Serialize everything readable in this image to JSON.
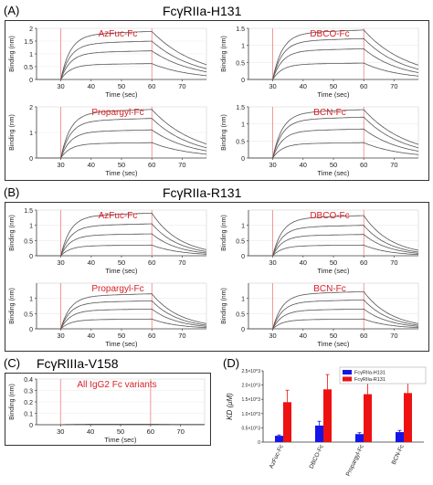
{
  "section_labels": [
    "(A)",
    "(B)",
    "(C)",
    "(D)"
  ],
  "section_titles": [
    "FcγRIIa-H131",
    "FcγRIIa-R131",
    "FcγRIIIa-V158"
  ],
  "colors": {
    "label_red": "#d81f26",
    "curve": "#555555",
    "marker": "#f08080",
    "h131_bar": "#1515e6",
    "r131_bar": "#ee1111"
  },
  "chart_data": [
    {
      "type": "line",
      "panel": "A",
      "title": "AzFuc-Fc",
      "xlabel": "Time (sec)",
      "ylabel": "Binding (nm)",
      "xlim": [
        22,
        78
      ],
      "ylim": [
        0,
        2
      ],
      "xticks": [
        30,
        40,
        50,
        60,
        70
      ],
      "yticks": [
        0,
        0.5,
        1,
        1.5,
        2
      ],
      "markers": [
        30,
        60
      ],
      "x": [
        30,
        60,
        78
      ],
      "plateaus": [
        1.88,
        1.5,
        1.12,
        0.62
      ],
      "end_values": [
        0.58,
        0.42,
        0.3,
        0.15
      ]
    },
    {
      "type": "line",
      "panel": "A",
      "title": "DBCO-Fc",
      "xlabel": "Time (sec)",
      "ylabel": "Binding (nm)",
      "xlim": [
        22,
        78
      ],
      "ylim": [
        0,
        1.5
      ],
      "xticks": [
        30,
        40,
        50,
        60,
        70
      ],
      "yticks": [
        0,
        0.5,
        1,
        1.5
      ],
      "markers": [
        30,
        60
      ],
      "x": [
        30,
        60,
        78
      ],
      "plateaus": [
        1.45,
        1.2,
        0.9,
        0.48
      ],
      "end_values": [
        0.42,
        0.3,
        0.2,
        0.1
      ]
    },
    {
      "type": "line",
      "panel": "A",
      "title": "Propargyl-Fc",
      "xlabel": "Time (sec)",
      "ylabel": "Binding (nm)",
      "xlim": [
        22,
        78
      ],
      "ylim": [
        0,
        2
      ],
      "xticks": [
        30,
        40,
        50,
        60,
        70
      ],
      "yticks": [
        0,
        1,
        2
      ],
      "markers": [
        30,
        60
      ],
      "x": [
        30,
        60,
        78
      ],
      "plateaus": [
        1.9,
        1.55,
        1.1,
        0.6
      ],
      "end_values": [
        0.55,
        0.4,
        0.28,
        0.15
      ]
    },
    {
      "type": "line",
      "panel": "A",
      "title": "BCN-Fc",
      "xlabel": "Time (sec)",
      "ylabel": "Binding (nm)",
      "xlim": [
        22,
        78
      ],
      "ylim": [
        0,
        1.5
      ],
      "xticks": [
        30,
        40,
        50,
        60,
        70
      ],
      "yticks": [
        0,
        0.5,
        1,
        1.5
      ],
      "markers": [
        30,
        60
      ],
      "x": [
        30,
        60,
        78
      ],
      "plateaus": [
        1.42,
        1.2,
        0.85,
        0.45
      ],
      "end_values": [
        0.4,
        0.3,
        0.2,
        0.1
      ]
    },
    {
      "type": "line",
      "panel": "B",
      "title": "AzFuc-Fc",
      "xlabel": "Time (sec)",
      "ylabel": "Binding (nm)",
      "xlim": [
        22,
        78
      ],
      "ylim": [
        0,
        1.5
      ],
      "xticks": [
        30,
        40,
        50,
        60,
        70
      ],
      "yticks": [
        0,
        0.5,
        1,
        1.5
      ],
      "markers": [
        30,
        60
      ],
      "x": [
        30,
        60,
        78
      ],
      "plateaus": [
        1.4,
        1.05,
        0.72,
        0.35
      ],
      "end_values": [
        0.2,
        0.14,
        0.09,
        0.05
      ]
    },
    {
      "type": "line",
      "panel": "B",
      "title": "DBCO-Fc",
      "xlabel": "Time (sec)",
      "ylabel": "Binding (nm)",
      "xlim": [
        22,
        78
      ],
      "ylim": [
        0,
        1.5
      ],
      "xticks": [
        30,
        40,
        50,
        60,
        70
      ],
      "yticks": [
        0,
        0.5,
        1
      ],
      "markers": [
        30,
        60
      ],
      "x": [
        30,
        60,
        78
      ],
      "plateaus": [
        1.32,
        1.0,
        0.7,
        0.35
      ],
      "end_values": [
        0.18,
        0.12,
        0.08,
        0.04
      ]
    },
    {
      "type": "line",
      "panel": "B",
      "title": "Propargyl-Fc",
      "xlabel": "Time (sec)",
      "ylabel": "Binding (nm)",
      "xlim": [
        22,
        78
      ],
      "ylim": [
        0,
        1.5
      ],
      "xticks": [
        30,
        40,
        50,
        60,
        70
      ],
      "yticks": [
        0,
        0.5,
        1
      ],
      "markers": [
        30,
        60
      ],
      "x": [
        30,
        60,
        78
      ],
      "plateaus": [
        1.15,
        0.92,
        0.65,
        0.32
      ],
      "end_values": [
        0.17,
        0.12,
        0.08,
        0.04
      ]
    },
    {
      "type": "line",
      "panel": "B",
      "title": "BCN-Fc",
      "xlabel": "Time (sec)",
      "ylabel": "Binding (nm)",
      "xlim": [
        22,
        78
      ],
      "ylim": [
        0,
        1.5
      ],
      "xticks": [
        30,
        40,
        50,
        60,
        70
      ],
      "yticks": [
        0,
        0.5,
        1
      ],
      "markers": [
        30,
        60
      ],
      "x": [
        30,
        60,
        78
      ],
      "plateaus": [
        1.22,
        0.95,
        0.65,
        0.32
      ],
      "end_values": [
        0.17,
        0.12,
        0.08,
        0.04
      ]
    },
    {
      "type": "line",
      "panel": "C",
      "title": "All IgG2 Fc variants",
      "xlabel": "Time (sec)",
      "ylabel": "Binding (nm)",
      "xlim": [
        22,
        78
      ],
      "ylim": [
        0,
        0.4
      ],
      "xticks": [
        30,
        40,
        50,
        60,
        70
      ],
      "yticks": [
        0,
        0.1,
        0.2,
        0.3,
        0.4
      ],
      "markers": [
        30,
        60
      ],
      "x": [
        30,
        60,
        78
      ],
      "plateaus": [
        0.005
      ],
      "end_values": [
        0.002
      ]
    },
    {
      "type": "bar",
      "panel": "D",
      "categories": [
        "AzFuc-Fc",
        "DBCO-Fc",
        "Propargyl-Fc",
        "BCN-Fc"
      ],
      "ylabel": "KD (μM)",
      "ylim": [
        0,
        2.5
      ],
      "yticks": [
        0,
        0.5,
        1,
        1.5,
        2,
        2.5
      ],
      "ytick_labels": [
        "0",
        "0.5×10^3",
        "1.0×10^3",
        "1.5×10^3",
        "2.0×10^3",
        "2.5×10^3"
      ],
      "legend_position": "top-right",
      "series": [
        {
          "name": "FcγRIIa-H131",
          "values": [
            0.22,
            0.58,
            0.28,
            0.35
          ],
          "errors": [
            0.03,
            0.15,
            0.05,
            0.06
          ]
        },
        {
          "name": "FcγRIIa-R131",
          "values": [
            1.4,
            1.85,
            1.68,
            1.72
          ],
          "errors": [
            0.42,
            0.52,
            0.4,
            0.35
          ]
        }
      ]
    }
  ]
}
